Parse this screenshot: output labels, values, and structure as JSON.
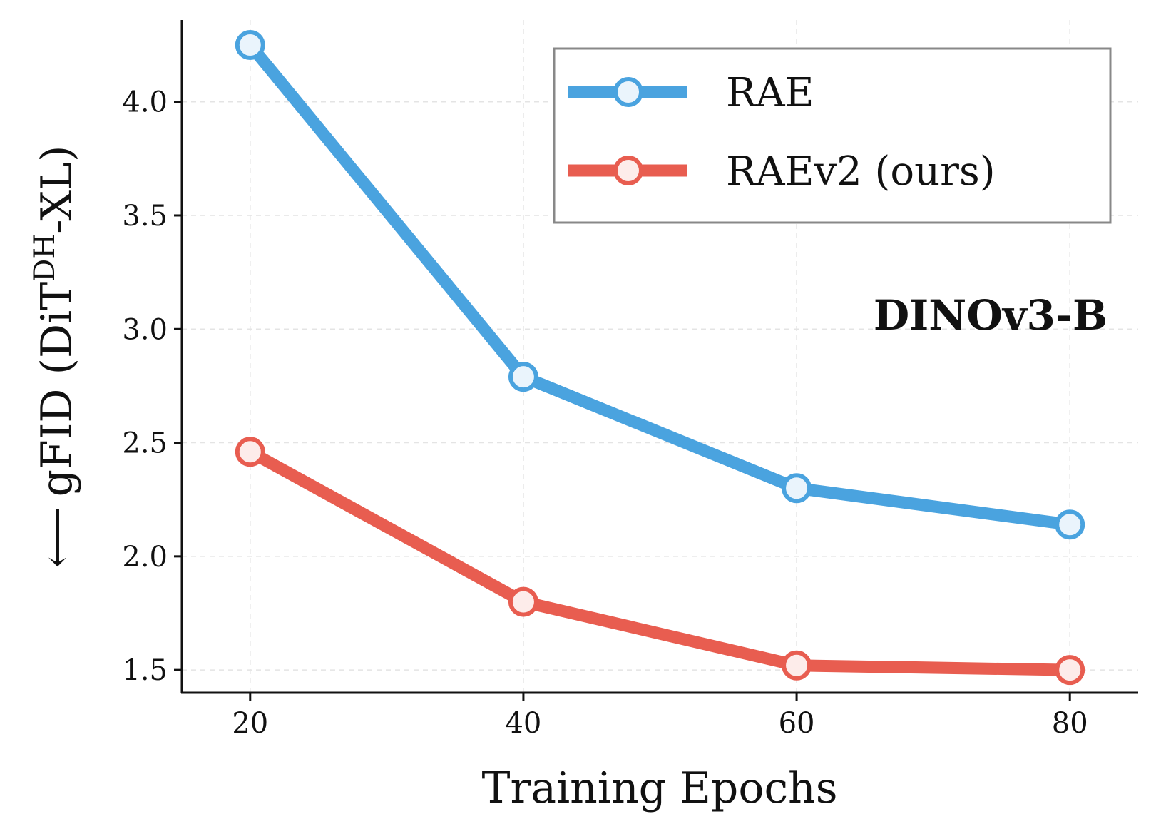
{
  "chart_data": {
    "type": "line",
    "x": [
      20,
      40,
      60,
      80
    ],
    "xlabel": "Training Epochs",
    "ylabel": {
      "arrow": "⟵",
      "prefix": "gFID (DiT",
      "superscript": "DH",
      "suffix": "-XL)"
    },
    "xlim": [
      15,
      85
    ],
    "ylim": [
      1.4,
      4.36
    ],
    "xticks": [
      "20",
      "40",
      "60",
      "80"
    ],
    "yticks": [
      "1.5",
      "2.0",
      "2.5",
      "3.0",
      "3.5",
      "4.0"
    ],
    "grid": true,
    "legend_position": "top-right",
    "annotation": "DINOv3-B",
    "series": [
      {
        "name": "RAE",
        "color": "#4aa3df",
        "values": [
          4.25,
          2.79,
          2.3,
          2.14
        ]
      },
      {
        "name": "RAEv2 (ours)",
        "color": "#e85d50",
        "values": [
          2.46,
          1.8,
          1.52,
          1.5
        ]
      }
    ]
  }
}
